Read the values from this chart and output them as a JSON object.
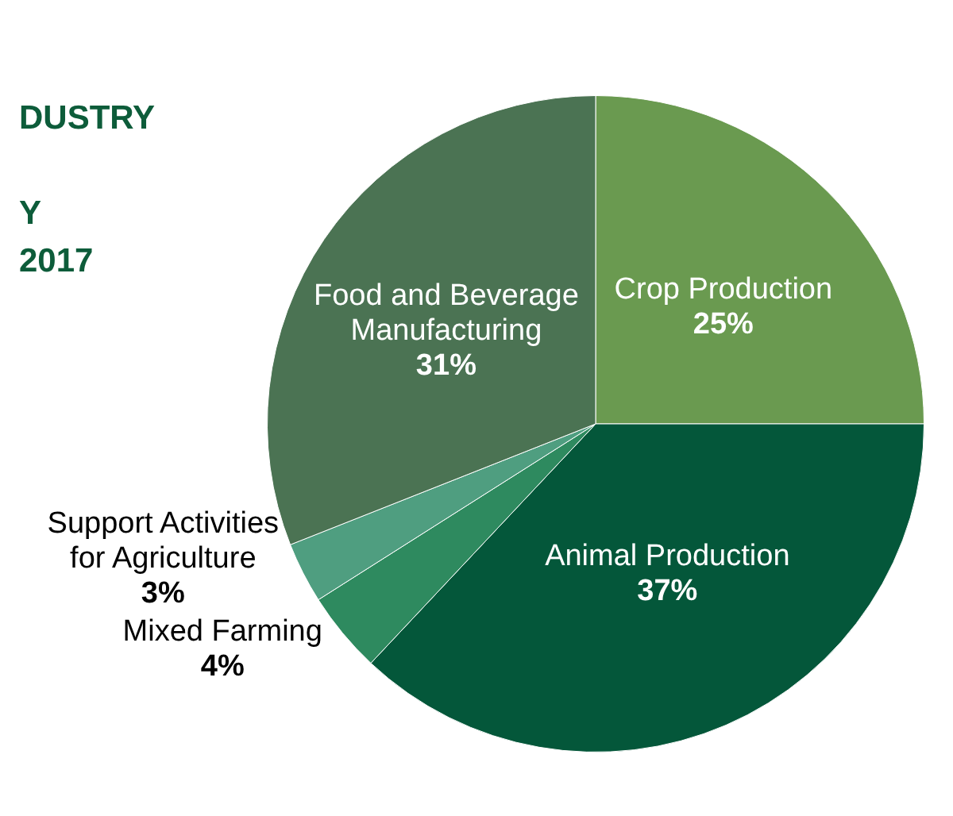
{
  "chart_data": {
    "type": "pie",
    "title": "DUSTRY",
    "subtitle": "Y\n2017",
    "categories": [
      "Crop Production",
      "Animal Production",
      "Mixed Farming",
      "Support Activities for Agriculture",
      "Food and Beverage Manufacturing"
    ],
    "values": [
      25,
      37,
      4,
      3,
      31
    ],
    "value_labels": [
      "25%",
      "37%",
      "4%",
      "3%",
      "31%"
    ],
    "colors": [
      "#6a9a50",
      "#04573a",
      "#2e8a5f",
      "#4f9e80",
      "#4b7353"
    ],
    "legend": false
  }
}
